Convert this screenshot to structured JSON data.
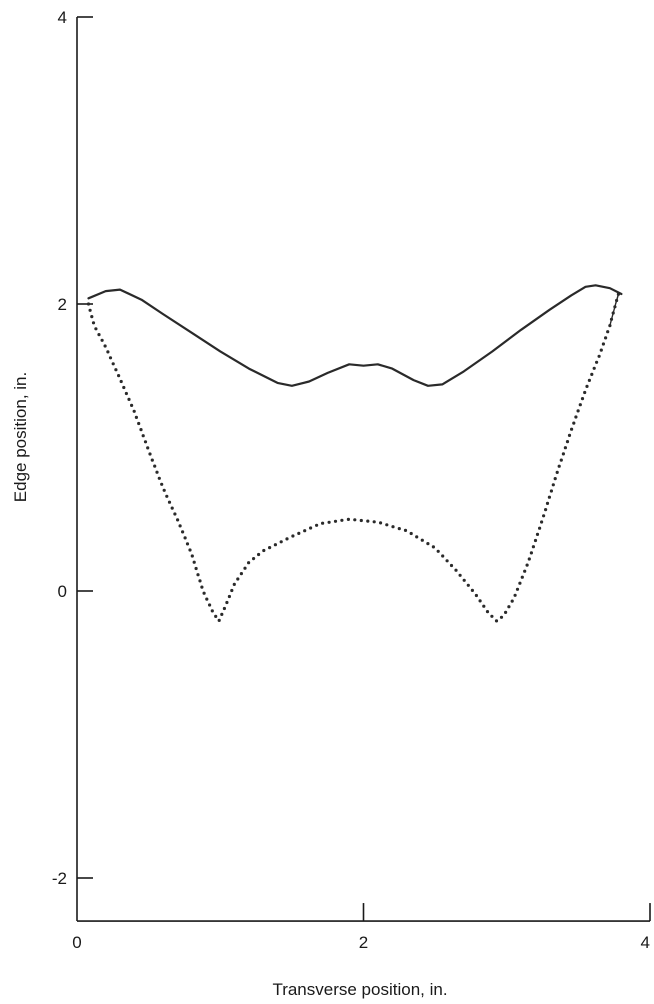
{
  "chart_data": {
    "type": "line",
    "title": "",
    "xlabel": "Transverse position, in.",
    "ylabel": "Edge position, in.",
    "xlim": [
      0,
      4
    ],
    "ylim": [
      -2.3,
      4
    ],
    "x_ticks": [
      {
        "value": 0,
        "label": "0"
      },
      {
        "value": 2,
        "label": "2"
      },
      {
        "value": 4,
        "label": "4"
      }
    ],
    "y_ticks": [
      {
        "value": 4,
        "label": "4"
      },
      {
        "value": 2,
        "label": "2"
      },
      {
        "value": 0,
        "label": "0"
      },
      {
        "value": -2,
        "label": "-2"
      }
    ],
    "grid": false,
    "legend": "none",
    "series": [
      {
        "style": "solid",
        "points": [
          [
            0.08,
            2.04
          ],
          [
            0.2,
            2.09
          ],
          [
            0.3,
            2.1
          ],
          [
            0.45,
            2.03
          ],
          [
            0.6,
            1.93
          ],
          [
            0.8,
            1.8
          ],
          [
            1.0,
            1.67
          ],
          [
            1.2,
            1.55
          ],
          [
            1.4,
            1.45
          ],
          [
            1.5,
            1.43
          ],
          [
            1.62,
            1.46
          ],
          [
            1.75,
            1.52
          ],
          [
            1.9,
            1.58
          ],
          [
            2.0,
            1.57
          ],
          [
            2.1,
            1.58
          ],
          [
            2.2,
            1.55
          ],
          [
            2.35,
            1.47
          ],
          [
            2.45,
            1.43
          ],
          [
            2.55,
            1.44
          ],
          [
            2.7,
            1.53
          ],
          [
            2.9,
            1.67
          ],
          [
            3.1,
            1.82
          ],
          [
            3.3,
            1.96
          ],
          [
            3.45,
            2.06
          ],
          [
            3.55,
            2.12
          ],
          [
            3.62,
            2.13
          ],
          [
            3.72,
            2.11
          ],
          [
            3.8,
            2.07
          ]
        ]
      },
      {
        "style": "dotted",
        "points": [
          [
            0.08,
            2.0
          ],
          [
            0.12,
            1.85
          ],
          [
            0.2,
            1.7
          ],
          [
            0.3,
            1.48
          ],
          [
            0.4,
            1.25
          ],
          [
            0.5,
            0.98
          ],
          [
            0.6,
            0.72
          ],
          [
            0.7,
            0.5
          ],
          [
            0.8,
            0.26
          ],
          [
            0.88,
            0.0
          ],
          [
            0.95,
            -0.15
          ],
          [
            0.99,
            -0.21
          ],
          [
            1.03,
            -0.12
          ],
          [
            1.1,
            0.05
          ],
          [
            1.2,
            0.2
          ],
          [
            1.3,
            0.28
          ],
          [
            1.5,
            0.38
          ],
          [
            1.7,
            0.47
          ],
          [
            1.9,
            0.5
          ],
          [
            2.1,
            0.48
          ],
          [
            2.3,
            0.42
          ],
          [
            2.5,
            0.3
          ],
          [
            2.65,
            0.14
          ],
          [
            2.78,
            -0.02
          ],
          [
            2.87,
            -0.15
          ],
          [
            2.93,
            -0.21
          ],
          [
            2.98,
            -0.17
          ],
          [
            3.05,
            -0.05
          ],
          [
            3.15,
            0.2
          ],
          [
            3.25,
            0.5
          ],
          [
            3.35,
            0.82
          ],
          [
            3.45,
            1.12
          ],
          [
            3.55,
            1.4
          ],
          [
            3.65,
            1.65
          ],
          [
            3.72,
            1.85
          ],
          [
            3.76,
            2.0
          ],
          [
            3.78,
            2.07
          ]
        ]
      }
    ]
  }
}
